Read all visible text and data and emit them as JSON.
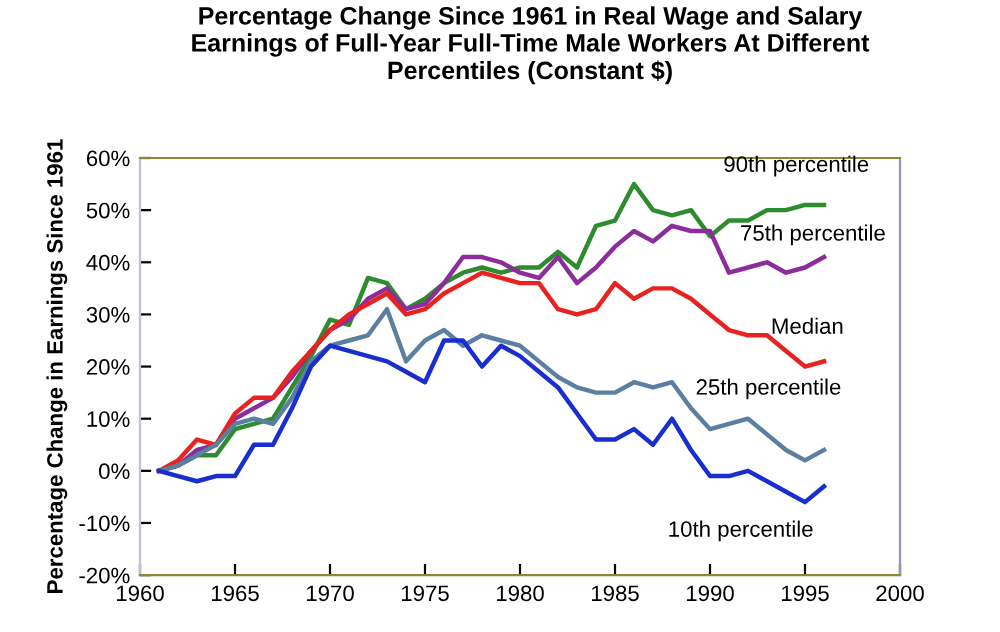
{
  "chart_data": {
    "type": "line",
    "title": "Percentage Change Since 1961 in Real Wage and Salary\nEarnings of Full-Year Full-Time Male Workers At Different\nPercentiles (Constant $)",
    "ylabel": "Percentage Change in Earnings Since 1961",
    "x": [
      1961,
      1962,
      1963,
      1964,
      1965,
      1966,
      1967,
      1968,
      1969,
      1970,
      1971,
      1972,
      1973,
      1974,
      1975,
      1976,
      1977,
      1978,
      1979,
      1980,
      1981,
      1982,
      1983,
      1984,
      1985,
      1986,
      1987,
      1988,
      1989,
      1990,
      1991,
      1992,
      1993,
      1994,
      1995,
      1996
    ],
    "series": [
      {
        "name": "90th percentile",
        "color": "#2e8b2e",
        "values": [
          0,
          1,
          3,
          3,
          8,
          9,
          10,
          16,
          22,
          29,
          28,
          37,
          36,
          31,
          33,
          36,
          38,
          39,
          38,
          39,
          39,
          42,
          39,
          47,
          48,
          55,
          50,
          49,
          50,
          45,
          48,
          48,
          50,
          50,
          51,
          51
        ]
      },
      {
        "name": "75th percentile",
        "color": "#8b2e9b",
        "values": [
          0,
          1,
          4,
          5,
          10,
          12,
          14,
          18,
          23,
          27,
          29,
          33,
          35,
          31,
          32,
          36,
          41,
          41,
          40,
          38,
          37,
          41,
          36,
          39,
          43,
          46,
          44,
          47,
          46,
          46,
          38,
          39,
          40,
          38,
          39,
          41
        ]
      },
      {
        "name": "Median",
        "color": "#e8221e",
        "values": [
          0,
          2,
          6,
          5,
          11,
          14,
          14,
          19,
          23,
          27,
          30,
          32,
          34,
          30,
          31,
          34,
          36,
          38,
          37,
          36,
          36,
          31,
          30,
          31,
          36,
          33,
          35,
          35,
          33,
          30,
          27,
          26,
          26,
          23,
          20,
          21
        ]
      },
      {
        "name": "25th percentile",
        "color": "#5a7fa0",
        "values": [
          0,
          1,
          3,
          5,
          9,
          10,
          9,
          14,
          21,
          24,
          25,
          26,
          31,
          21,
          25,
          27,
          24,
          26,
          25,
          24,
          21,
          18,
          16,
          15,
          15,
          17,
          16,
          17,
          12,
          8,
          9,
          10,
          7,
          4,
          2,
          4
        ]
      },
      {
        "name": "10th percentile",
        "color": "#1a2ed0",
        "values": [
          0,
          -1,
          -2,
          -1,
          -1,
          5,
          5,
          12,
          20,
          24,
          23,
          22,
          21,
          19,
          17,
          25,
          25,
          20,
          24,
          22,
          19,
          16,
          11,
          6,
          6,
          8,
          5,
          10,
          4,
          -1,
          -1,
          0,
          -2,
          -4,
          -6,
          -3
        ]
      }
    ],
    "xlim": [
      1960,
      2000
    ],
    "xticks": [
      1960,
      1965,
      1970,
      1975,
      1980,
      1985,
      1990,
      1995,
      2000
    ],
    "ylim": [
      -20,
      60
    ],
    "yticks": [
      {
        "value": -20,
        "label": "-20%"
      },
      {
        "value": -10,
        "label": "-10%"
      },
      {
        "value": 0,
        "label": "0%"
      },
      {
        "value": 10,
        "label": "10%"
      },
      {
        "value": 20,
        "label": "20%"
      },
      {
        "value": 30,
        "label": "30%"
      },
      {
        "value": 40,
        "label": "40%"
      },
      {
        "value": 50,
        "label": "50%"
      },
      {
        "value": 60,
        "label": "60%"
      }
    ],
    "grid": false,
    "legend": false,
    "marker": "none",
    "line_style": "solid"
  }
}
